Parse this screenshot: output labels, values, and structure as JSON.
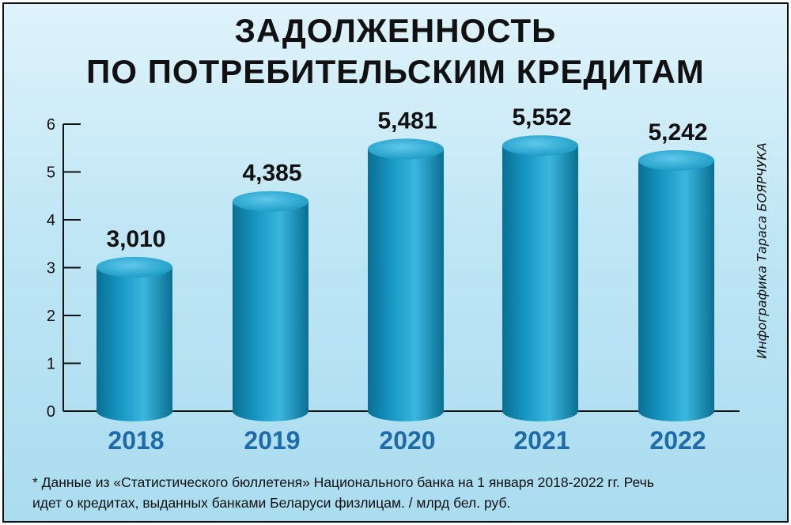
{
  "title_line1": "ЗАДОЛЖЕННОСТЬ",
  "title_line2": "ПО ПОТРЕБИТЕЛЬСКИМ КРЕДИТАМ",
  "credit": "Инфографика Тараса БОЯРЧУКА",
  "footnote_line1": "* Данные из «Статистического бюллетеня» Национального банка на 1 января 2018-2022 гг. Речь",
  "footnote_line2": "идет о кредитах, выданных банками Беларуси физлицам. / млрд бел. руб.",
  "colors": {
    "bar_dark": "#0a6f93",
    "bar_mid": "#1596c2",
    "bar_light": "#3bb6de",
    "top_light": "#5fc8ea",
    "year_label": "#1f6aa8",
    "axis": "#111111"
  },
  "chart_data": {
    "type": "bar",
    "style": "3d-cylinder",
    "categories": [
      "2018",
      "2019",
      "2020",
      "2021",
      "2022"
    ],
    "values": [
      3.01,
      4.385,
      5.481,
      5.552,
      5.242
    ],
    "data_labels": [
      "3,010",
      "4,385",
      "5,481",
      "5,552",
      "5,242"
    ],
    "ylim": [
      0,
      6
    ],
    "yticks": [
      "0",
      "1",
      "2",
      "3",
      "4",
      "5",
      "6"
    ],
    "xlabel": "",
    "ylabel": "",
    "grid": false,
    "legend": "none"
  }
}
